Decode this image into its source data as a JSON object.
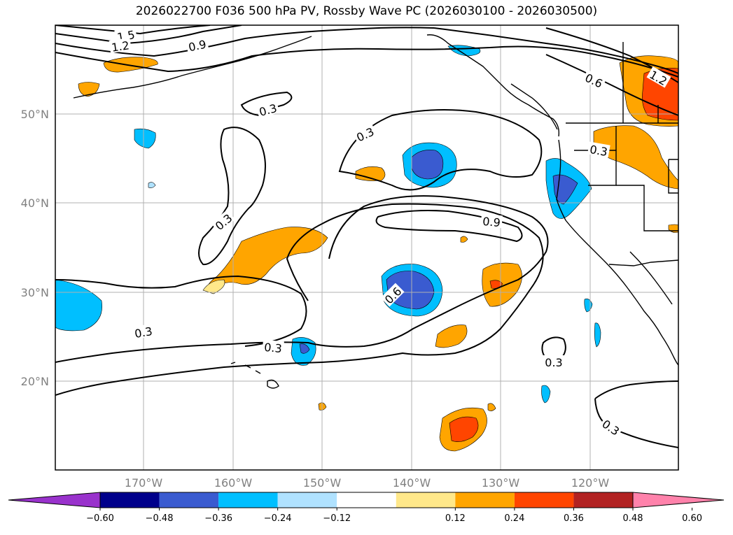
{
  "title": "2026022700 F036 500 hPa PV, Rossby Wave PC (2026030100 - 2026030500)",
  "colors": {
    "frame": "#000000",
    "grid": "#b0b0b0",
    "coast": "#000000",
    "neg_0": "#9932cc",
    "neg_1": "#00008b",
    "neg_2": "#3a5bd0",
    "neg_3": "#00bfff",
    "neg_4": "#b0e2ff",
    "zero": "#ffffff",
    "pos_1": "#ffe88a",
    "pos_2": "#ffa500",
    "pos_3": "#ff4500",
    "pos_4": "#b22222",
    "pos_5": "#ff82ab"
  },
  "map": {
    "lat_labels": [
      "50°N",
      "40°N",
      "30°N",
      "20°N"
    ],
    "lon_labels": [
      "170°W",
      "160°W",
      "150°W",
      "140°W",
      "130°W",
      "120°W"
    ]
  },
  "colorbar": {
    "ticks": [
      "−0.60",
      "−0.48",
      "−0.36",
      "−0.24",
      "−0.12",
      "0.12",
      "0.24",
      "0.36",
      "0.48",
      "0.60"
    ]
  },
  "contour_labels": [
    {
      "text": "1.5"
    },
    {
      "text": "1.2"
    },
    {
      "text": "0.9"
    },
    {
      "text": "0.6"
    },
    {
      "text": "1.2"
    },
    {
      "text": "0.3"
    },
    {
      "text": "0.3"
    },
    {
      "text": "0.3"
    },
    {
      "text": "0.3"
    },
    {
      "text": "0.9"
    },
    {
      "text": "0.6"
    },
    {
      "text": "0.3"
    },
    {
      "text": "0.3"
    },
    {
      "text": "0.3"
    },
    {
      "text": "0.3"
    }
  ]
}
